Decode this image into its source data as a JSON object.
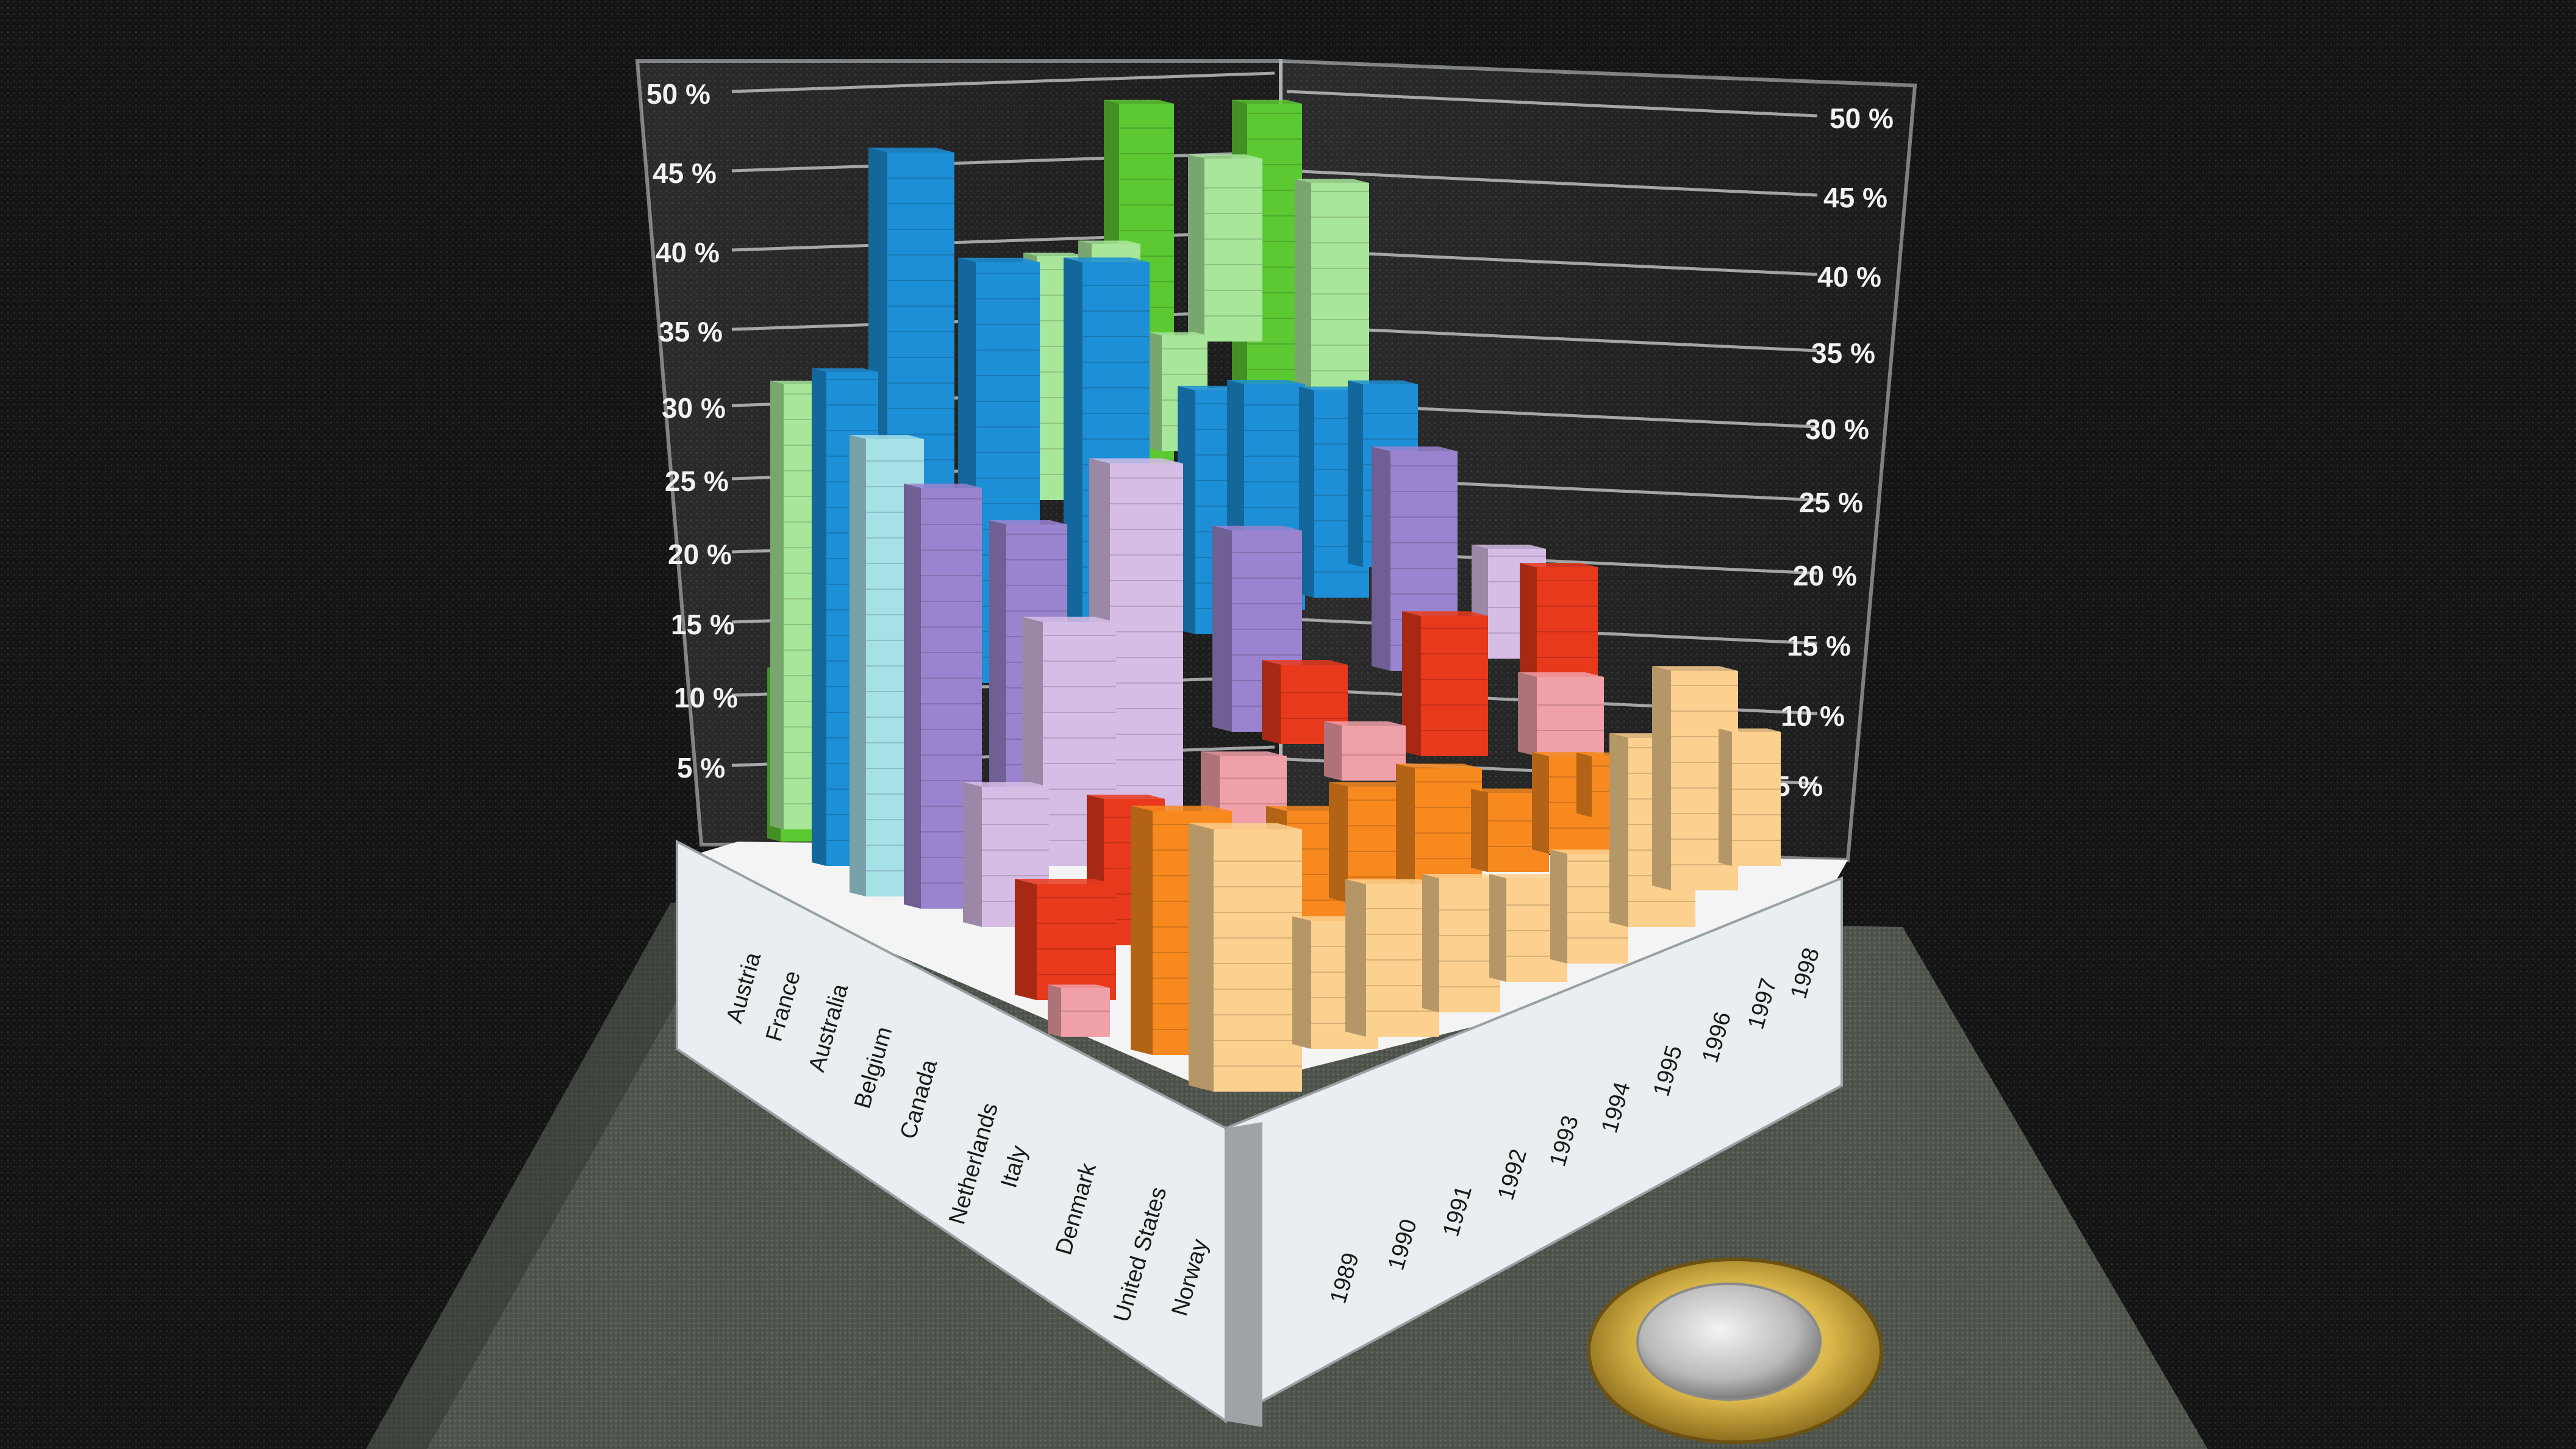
{
  "axis_ticks": [
    "5 %",
    "10 %",
    "15 %",
    "20 %",
    "25 %",
    "30 %",
    "35 %",
    "40 %",
    "45 %",
    "50 %"
  ],
  "countries": [
    "Austria",
    "France",
    "Australia",
    "Belgium",
    "Canada",
    "Netherlands",
    "Italy",
    "Denmark",
    "United States",
    "Norway"
  ],
  "years": [
    "1989",
    "1990",
    "1991",
    "1992",
    "1993",
    "1994",
    "1995",
    "1996",
    "1997",
    "1998"
  ],
  "colors": {
    "background": "#151515",
    "foam": "#5a5f57",
    "base_panel": "#e9eef0",
    "green": "#5cc832",
    "light_green": "#a8e69a",
    "blue": "#1c8fd6",
    "light_blue": "#a6e1e8",
    "purple": "#9a84cf",
    "lilac": "#d6bde6",
    "red": "#e8391c",
    "pink": "#f0a0a8",
    "orange": "#f7891f",
    "peach": "#fcd08e"
  },
  "coin": {
    "kind": "euro-coin-icon"
  }
}
